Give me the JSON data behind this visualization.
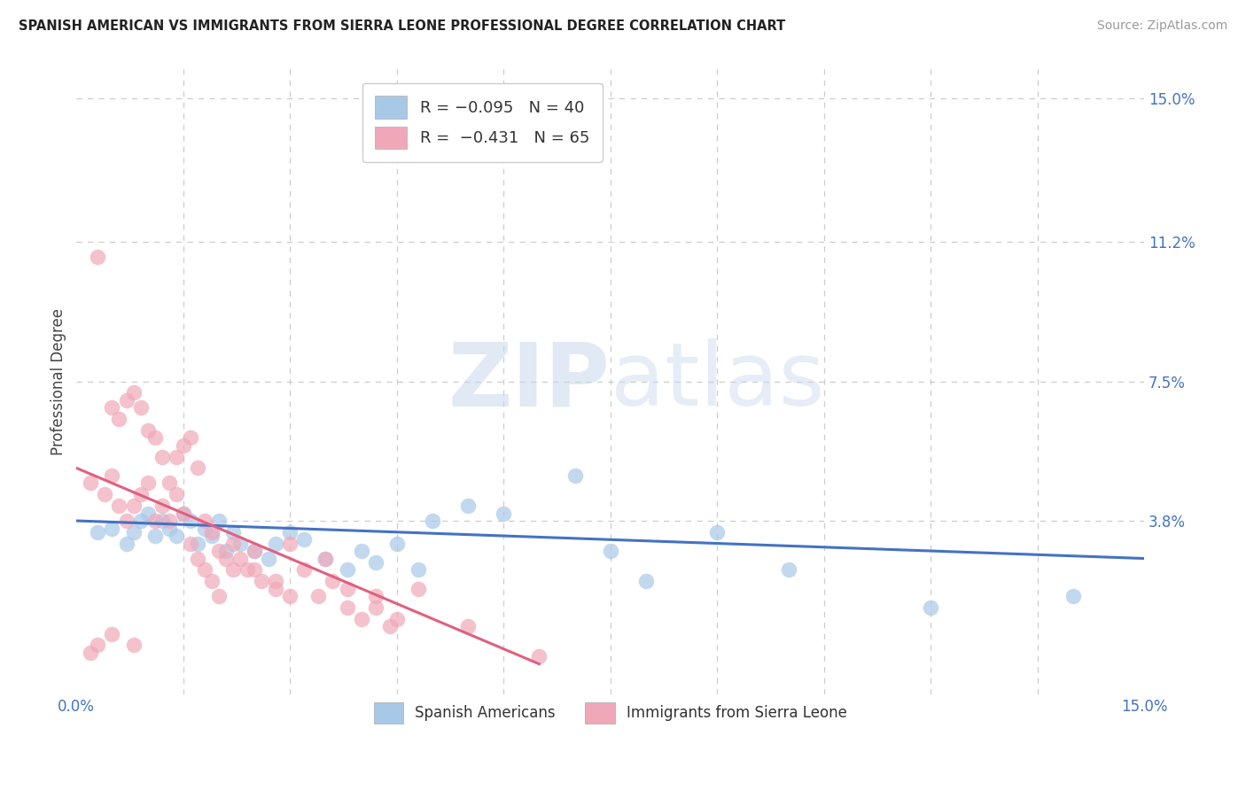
{
  "title": "SPANISH AMERICAN VS IMMIGRANTS FROM SIERRA LEONE PROFESSIONAL DEGREE CORRELATION CHART",
  "source": "Source: ZipAtlas.com",
  "ylabel": "Professional Degree",
  "color_blue": "#A8C8E8",
  "color_pink": "#F0A8B8",
  "color_blue_line": "#4472C4",
  "color_pink_line": "#E06080",
  "xmin": 0.0,
  "xmax": 0.15,
  "ymin": -0.008,
  "ymax": 0.158,
  "yticks": [
    0.0,
    0.038,
    0.075,
    0.112,
    0.15
  ],
  "ytick_labels": [
    "",
    "3.8%",
    "7.5%",
    "11.2%",
    "15.0%"
  ],
  "xtick_positions": [
    0.0,
    0.015,
    0.03,
    0.045,
    0.06,
    0.075,
    0.09,
    0.105,
    0.12,
    0.135,
    0.15
  ],
  "blue_line_x": [
    0.0,
    0.15
  ],
  "blue_line_y": [
    0.038,
    0.028
  ],
  "pink_line_x": [
    0.0,
    0.065
  ],
  "pink_line_y": [
    0.052,
    0.0
  ],
  "blue_scatter_x": [
    0.003,
    0.005,
    0.007,
    0.008,
    0.009,
    0.01,
    0.011,
    0.012,
    0.013,
    0.014,
    0.015,
    0.016,
    0.017,
    0.018,
    0.019,
    0.02,
    0.021,
    0.022,
    0.023,
    0.025,
    0.027,
    0.028,
    0.03,
    0.032,
    0.035,
    0.038,
    0.04,
    0.042,
    0.045,
    0.048,
    0.05,
    0.055,
    0.06,
    0.07,
    0.075,
    0.08,
    0.09,
    0.1,
    0.12,
    0.14
  ],
  "blue_scatter_y": [
    0.035,
    0.036,
    0.032,
    0.035,
    0.038,
    0.04,
    0.034,
    0.038,
    0.036,
    0.034,
    0.04,
    0.038,
    0.032,
    0.036,
    0.034,
    0.038,
    0.03,
    0.035,
    0.032,
    0.03,
    0.028,
    0.032,
    0.035,
    0.033,
    0.028,
    0.025,
    0.03,
    0.027,
    0.032,
    0.025,
    0.038,
    0.042,
    0.04,
    0.05,
    0.03,
    0.022,
    0.035,
    0.025,
    0.015,
    0.018
  ],
  "pink_scatter_x": [
    0.002,
    0.003,
    0.004,
    0.005,
    0.006,
    0.007,
    0.008,
    0.009,
    0.01,
    0.011,
    0.012,
    0.013,
    0.014,
    0.015,
    0.016,
    0.017,
    0.018,
    0.019,
    0.02,
    0.021,
    0.022,
    0.023,
    0.024,
    0.025,
    0.026,
    0.028,
    0.03,
    0.032,
    0.034,
    0.036,
    0.038,
    0.04,
    0.042,
    0.044,
    0.005,
    0.006,
    0.007,
    0.008,
    0.009,
    0.01,
    0.011,
    0.012,
    0.013,
    0.014,
    0.015,
    0.016,
    0.017,
    0.018,
    0.019,
    0.02,
    0.022,
    0.025,
    0.028,
    0.03,
    0.035,
    0.038,
    0.042,
    0.045,
    0.048,
    0.055,
    0.003,
    0.005,
    0.008,
    0.065,
    0.002
  ],
  "pink_scatter_y": [
    0.048,
    0.108,
    0.045,
    0.05,
    0.042,
    0.038,
    0.042,
    0.045,
    0.048,
    0.038,
    0.042,
    0.038,
    0.055,
    0.058,
    0.06,
    0.052,
    0.038,
    0.035,
    0.03,
    0.028,
    0.032,
    0.028,
    0.025,
    0.025,
    0.022,
    0.02,
    0.018,
    0.025,
    0.018,
    0.022,
    0.015,
    0.012,
    0.018,
    0.01,
    0.068,
    0.065,
    0.07,
    0.072,
    0.068,
    0.062,
    0.06,
    0.055,
    0.048,
    0.045,
    0.04,
    0.032,
    0.028,
    0.025,
    0.022,
    0.018,
    0.025,
    0.03,
    0.022,
    0.032,
    0.028,
    0.02,
    0.015,
    0.012,
    0.02,
    0.01,
    0.005,
    0.008,
    0.005,
    0.002,
    0.003
  ]
}
